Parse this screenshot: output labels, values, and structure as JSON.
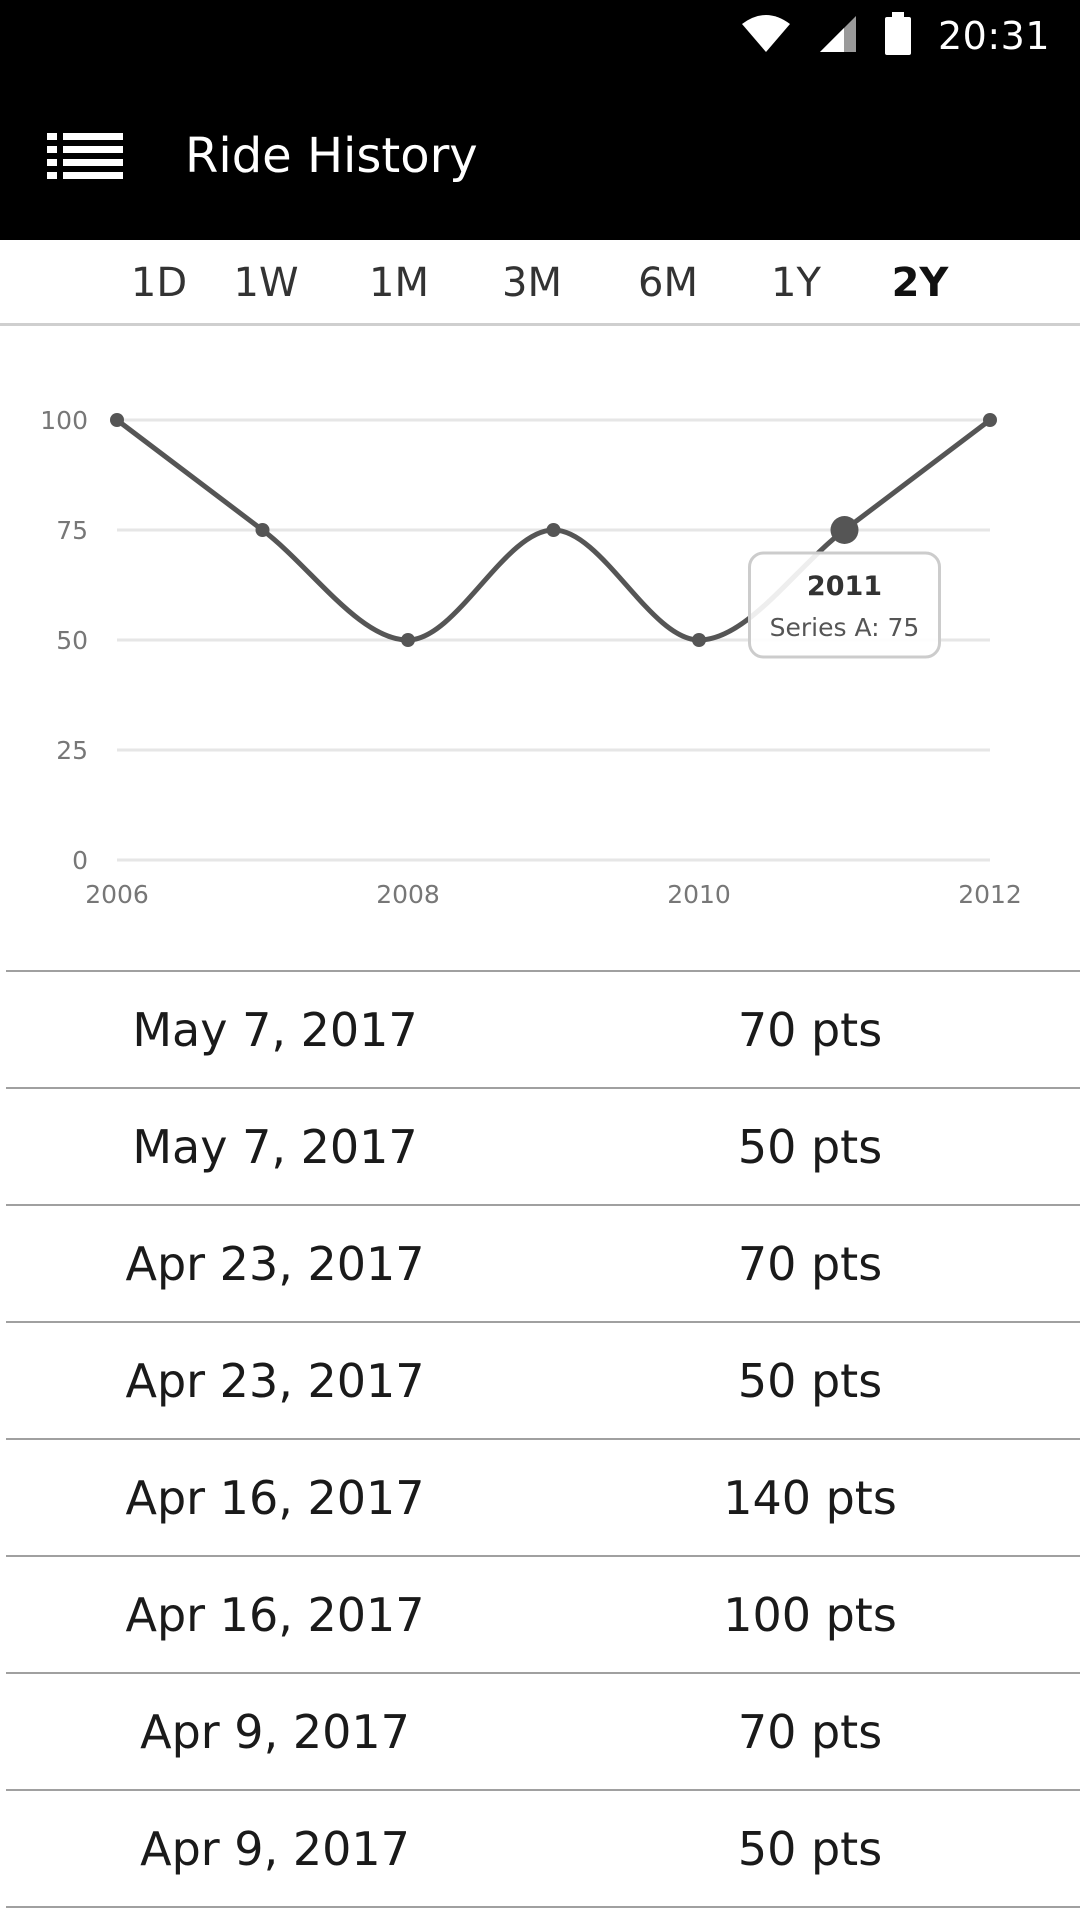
{
  "status_bar": {
    "time": "20:31",
    "icons": [
      "wifi-icon",
      "cell-signal-icon",
      "battery-icon"
    ]
  },
  "app_bar": {
    "menu_icon": "list-menu-icon",
    "title": "Ride History"
  },
  "range_tabs": [
    {
      "label": "1D",
      "active": false
    },
    {
      "label": "1W",
      "active": false
    },
    {
      "label": "1M",
      "active": false
    },
    {
      "label": "3M",
      "active": false
    },
    {
      "label": "6M",
      "active": false
    },
    {
      "label": "1Y",
      "active": false
    },
    {
      "label": "2Y",
      "active": true
    }
  ],
  "chart_data": {
    "type": "line",
    "x": [
      2006,
      2007,
      2008,
      2009,
      2010,
      2011,
      2012
    ],
    "series": [
      {
        "name": "Series A",
        "values": [
          100,
          75,
          50,
          75,
          50,
          75,
          100
        ]
      }
    ],
    "x_ticks": [
      "2006",
      "2008",
      "2010",
      "2012"
    ],
    "y_ticks": [
      "0",
      "25",
      "50",
      "75",
      "100"
    ],
    "ylim": [
      0,
      100
    ],
    "grid": true,
    "highlight_index": 5,
    "tooltip": {
      "title": "2011",
      "text": "Series A: 75"
    },
    "line_color": "#555555",
    "grid_color": "#e6e6e6"
  },
  "history": [
    {
      "date": "May 7, 2017",
      "points": "70 pts"
    },
    {
      "date": "May 7, 2017",
      "points": "50 pts"
    },
    {
      "date": "Apr 23, 2017",
      "points": "70 pts"
    },
    {
      "date": "Apr 23, 2017",
      "points": "50 pts"
    },
    {
      "date": "Apr 16, 2017",
      "points": "140 pts"
    },
    {
      "date": "Apr 16, 2017",
      "points": "100 pts"
    },
    {
      "date": "Apr 9, 2017",
      "points": "70 pts"
    },
    {
      "date": "Apr 9, 2017",
      "points": "50 pts"
    }
  ]
}
